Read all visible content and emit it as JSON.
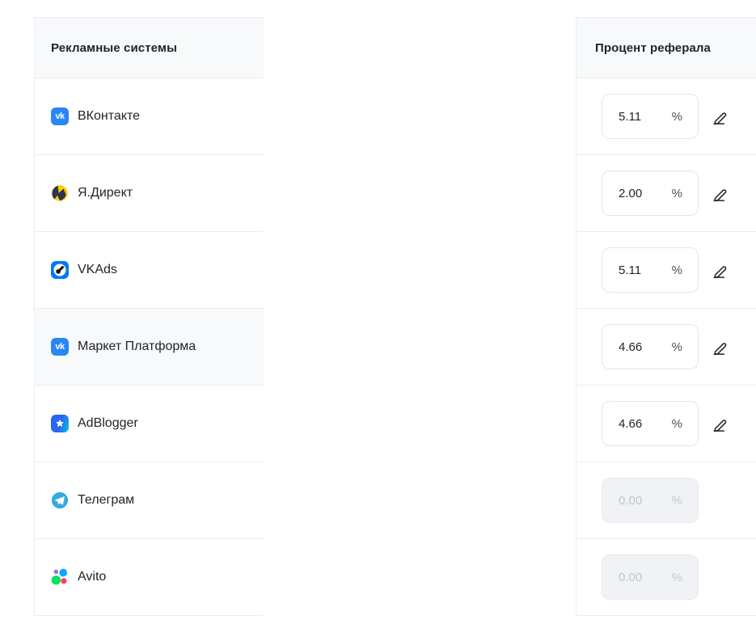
{
  "left_table": {
    "header": "Рекламные системы",
    "rows": [
      {
        "label": "ВКонтакте",
        "icon": "vk",
        "highlighted": false
      },
      {
        "label": "Я.Директ",
        "icon": "yandex-direct",
        "highlighted": false
      },
      {
        "label": "VKAds",
        "icon": "vk-ads",
        "highlighted": false
      },
      {
        "label": "Маркет Платформа",
        "icon": "vk",
        "highlighted": true
      },
      {
        "label": "AdBlogger",
        "icon": "adblogger",
        "highlighted": false
      },
      {
        "label": "Телеграм",
        "icon": "telegram",
        "highlighted": false
      },
      {
        "label": "Avito",
        "icon": "avito",
        "highlighted": false
      }
    ]
  },
  "right_table": {
    "header": "Процент реферала",
    "unit": "%",
    "rows": [
      {
        "value": "5.11",
        "editable": true
      },
      {
        "value": "2.00",
        "editable": true
      },
      {
        "value": "5.11",
        "editable": true
      },
      {
        "value": "4.66",
        "editable": true
      },
      {
        "value": "4.66",
        "editable": true
      },
      {
        "value": "0.00",
        "editable": false
      },
      {
        "value": "0.00",
        "editable": false
      }
    ]
  },
  "icons": {
    "vk_label": "vk",
    "edit_icon": "pencil-line-icon"
  },
  "colors": {
    "border": "#e9edf2",
    "header_bg": "#f8f9fa",
    "highlight_row_bg": "#f8f9fa",
    "text": "#212529",
    "unit_text": "#495057",
    "disabled_bg": "#f0f2f5",
    "disabled_text": "#bfc6ce",
    "vk_blue": "#2787f5",
    "vkads_blue": "#0077ff",
    "telegram_blue": "#34a9e2",
    "yandex_yellow": "#ffcc00",
    "yandex_navy": "#2c3550",
    "adblogger_gradient": [
      "#2a66f3",
      "#00c9d4"
    ],
    "avito_purple": "#a169f7",
    "avito_blue": "#00aaff",
    "avito_green": "#04e061",
    "avito_red": "#ff4053"
  }
}
